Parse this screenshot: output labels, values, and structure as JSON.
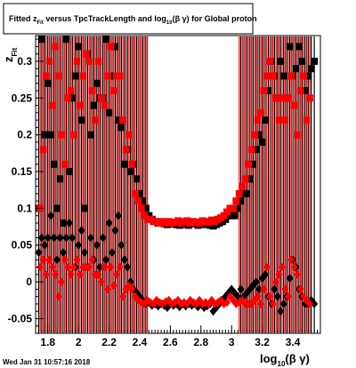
{
  "chart_data": {
    "type": "scatter",
    "title_parts": {
      "a": "Fitted  z",
      "a_sub": "Fit",
      "b": " versus TpcTrackLength and log",
      "b_sub": "10",
      "c": "(β γ) for Global proton"
    },
    "xlabel_main": "log",
    "xlabel_sub": "10",
    "xlabel_tail": "(β γ)",
    "ylabel_main": "z",
    "ylabel_sub": "Fit",
    "timestamp": "Wed Jan 31 10:57:16 2018",
    "xlim": [
      1.72,
      3.58
    ],
    "ylim": [
      -0.07,
      0.335
    ],
    "x_ticks": [
      "1.8",
      "2",
      "2.2",
      "2.4",
      "2.6",
      "2.8",
      "3",
      "3.2",
      "3.4"
    ],
    "x_tick_values": [
      1.8,
      2.0,
      2.2,
      2.4,
      2.6,
      2.8,
      3.0,
      3.2,
      3.4
    ],
    "y_ticks": [
      "-0.05",
      "0",
      "0.05",
      "0.1",
      "0.15",
      "0.2",
      "0.25",
      "0.3"
    ],
    "y_tick_values": [
      -0.05,
      0,
      0.05,
      0.1,
      0.15,
      0.2,
      0.25,
      0.3
    ],
    "series": [
      {
        "marker": "square",
        "color": "#000000",
        "x": [
          1.74,
          1.76,
          1.78,
          1.8,
          1.82,
          1.84,
          1.86,
          1.88,
          1.9,
          1.92,
          1.94,
          1.96,
          1.98,
          2.0,
          2.02,
          2.04,
          2.06,
          2.08,
          2.1,
          2.12,
          2.14,
          2.16,
          2.18,
          2.2,
          2.22,
          2.24,
          2.26,
          2.28,
          2.3,
          2.32,
          2.34,
          2.36,
          2.38,
          2.4,
          2.42,
          2.44,
          2.46,
          2.48,
          2.5,
          2.52,
          2.54,
          2.56,
          2.58,
          2.6,
          2.62,
          2.64,
          2.66,
          2.68,
          2.7,
          2.72,
          2.74,
          2.76,
          2.78,
          2.8,
          2.82,
          2.84,
          2.86,
          2.88,
          2.9,
          2.92,
          2.94,
          2.96,
          2.98,
          3.0,
          3.02,
          3.04,
          3.06,
          3.08,
          3.1,
          3.12,
          3.14,
          3.16,
          3.18,
          3.2,
          3.22,
          3.24,
          3.26,
          3.28,
          3.3,
          3.32,
          3.34,
          3.36,
          3.38,
          3.4,
          3.42,
          3.44,
          3.46,
          3.48,
          3.5,
          3.52,
          3.54
        ],
        "y": [
          0.1,
          0.33,
          0.2,
          0.27,
          0.2,
          0.16,
          0.1,
          0.14,
          0.08,
          0.33,
          0.15,
          0.25,
          0.28,
          0.32,
          0.22,
          0.1,
          0.31,
          0.2,
          0.24,
          0.27,
          0.25,
          0.25,
          0.33,
          0.23,
          0.28,
          0.32,
          0.22,
          0.21,
          0.16,
          0.18,
          0.15,
          0.16,
          0.14,
          0.12,
          0.11,
          0.1,
          0.09,
          0.085,
          0.082,
          0.08,
          0.08,
          0.079,
          0.078,
          0.079,
          0.08,
          0.078,
          0.077,
          0.078,
          0.08,
          0.077,
          0.079,
          0.08,
          0.077,
          0.078,
          0.08,
          0.078,
          0.077,
          0.076,
          0.078,
          0.08,
          0.082,
          0.085,
          0.09,
          0.09,
          0.09,
          0.1,
          0.11,
          0.12,
          0.12,
          0.14,
          0.16,
          0.18,
          0.2,
          0.19,
          0.22,
          0.26,
          0.3,
          0.28,
          0.25,
          0.3,
          0.28,
          0.25,
          0.32,
          0.28,
          0.29,
          0.32,
          0.3,
          0.26,
          0.28,
          0.29,
          0.3
        ]
      },
      {
        "marker": "square",
        "color": "#ff0000",
        "x": [
          1.75,
          1.77,
          1.79,
          1.81,
          1.83,
          1.85,
          1.87,
          1.89,
          1.91,
          1.93,
          1.95,
          1.97,
          1.99,
          2.01,
          2.03,
          2.05,
          2.07,
          2.09,
          2.11,
          2.13,
          2.15,
          2.17,
          2.19,
          2.21,
          2.23,
          2.25,
          2.27,
          2.29,
          2.31,
          2.33,
          2.35,
          2.37,
          2.39,
          2.41,
          2.43,
          2.45,
          2.47,
          2.49,
          2.51,
          2.53,
          2.55,
          2.57,
          2.59,
          2.61,
          2.63,
          2.65,
          2.67,
          2.69,
          2.71,
          2.73,
          2.75,
          2.77,
          2.79,
          2.81,
          2.83,
          2.85,
          2.87,
          2.89,
          2.91,
          2.93,
          2.95,
          2.97,
          2.99,
          3.01,
          3.03,
          3.05,
          3.07,
          3.09,
          3.11,
          3.13,
          3.15,
          3.17,
          3.19,
          3.21,
          3.23,
          3.25,
          3.27,
          3.29,
          3.31,
          3.33,
          3.35,
          3.37,
          3.39,
          3.41,
          3.43,
          3.45,
          3.47,
          3.49,
          3.51
        ],
        "y": [
          0.1,
          0.18,
          0.28,
          0.3,
          0.24,
          0.32,
          0.28,
          0.2,
          0.16,
          0.25,
          0.26,
          0.2,
          0.3,
          0.24,
          0.28,
          0.31,
          0.3,
          0.26,
          0.22,
          0.3,
          0.25,
          0.24,
          0.28,
          0.32,
          0.26,
          0.28,
          0.28,
          0.22,
          0.18,
          0.2,
          0.16,
          0.12,
          0.11,
          0.1,
          0.09,
          0.085,
          0.085,
          0.082,
          0.082,
          0.08,
          0.082,
          0.08,
          0.082,
          0.08,
          0.081,
          0.083,
          0.08,
          0.082,
          0.083,
          0.08,
          0.082,
          0.081,
          0.08,
          0.083,
          0.082,
          0.081,
          0.084,
          0.082,
          0.085,
          0.087,
          0.09,
          0.095,
          0.1,
          0.1,
          0.11,
          0.12,
          0.13,
          0.14,
          0.16,
          0.18,
          0.2,
          0.22,
          0.23,
          0.26,
          0.28,
          0.3,
          0.28,
          0.25,
          0.22,
          0.25,
          0.22,
          0.25,
          0.28,
          0.24,
          0.2,
          0.26,
          0.28,
          0.22,
          0.25
        ]
      },
      {
        "marker": "diamond",
        "color": "#000000",
        "x": [
          1.74,
          1.76,
          1.78,
          1.8,
          1.82,
          1.84,
          1.86,
          1.88,
          1.9,
          1.92,
          1.94,
          1.96,
          1.98,
          2.0,
          2.02,
          2.04,
          2.06,
          2.08,
          2.1,
          2.12,
          2.14,
          2.16,
          2.18,
          2.2,
          2.22,
          2.24,
          2.26,
          2.28,
          2.3,
          2.32,
          2.34,
          2.36,
          2.38,
          2.4,
          2.42,
          2.44,
          2.46,
          2.48,
          2.5,
          2.52,
          2.54,
          2.56,
          2.58,
          2.6,
          2.62,
          2.64,
          2.66,
          2.68,
          2.7,
          2.72,
          2.74,
          2.76,
          2.78,
          2.8,
          2.82,
          2.84,
          2.86,
          2.88,
          2.9,
          2.92,
          2.94,
          2.96,
          2.98,
          3.0,
          3.02,
          3.04,
          3.06,
          3.08,
          3.1,
          3.12,
          3.14,
          3.16,
          3.18,
          3.2,
          3.22,
          3.24,
          3.26,
          3.28,
          3.3,
          3.32,
          3.34,
          3.36,
          3.38,
          3.4,
          3.42,
          3.44,
          3.46,
          3.48,
          3.5,
          3.52,
          3.54
        ],
        "y": [
          0.04,
          0.06,
          0.05,
          0.06,
          0.09,
          0.06,
          0.03,
          0.06,
          0.04,
          0.06,
          0.08,
          0.06,
          0.02,
          0.05,
          0.07,
          0.04,
          0.02,
          0.06,
          0.03,
          0.05,
          0.02,
          0.06,
          0.03,
          0.08,
          0.04,
          0.07,
          0.09,
          0.05,
          0.03,
          0.02,
          0.0,
          -0.01,
          -0.015,
          -0.02,
          -0.025,
          -0.03,
          -0.028,
          -0.032,
          -0.03,
          -0.033,
          -0.03,
          -0.032,
          -0.035,
          -0.03,
          -0.032,
          -0.03,
          -0.034,
          -0.03,
          -0.033,
          -0.03,
          -0.032,
          -0.03,
          -0.034,
          -0.03,
          -0.035,
          -0.033,
          -0.03,
          -0.04,
          -0.035,
          -0.03,
          -0.025,
          -0.02,
          -0.015,
          -0.01,
          -0.015,
          -0.02,
          -0.01,
          -0.02,
          -0.015,
          -0.01,
          -0.005,
          0.0,
          -0.01,
          0.005,
          0.01,
          -0.02,
          -0.03,
          -0.01,
          -0.02,
          -0.04,
          -0.03,
          -0.02,
          0.005,
          0.03,
          0.02,
          -0.01,
          -0.02,
          -0.03,
          -0.03,
          -0.025,
          -0.03
        ]
      },
      {
        "marker": "diamond",
        "color": "#ff0000",
        "x": [
          1.75,
          1.77,
          1.79,
          1.81,
          1.83,
          1.85,
          1.87,
          1.89,
          1.91,
          1.93,
          1.95,
          1.97,
          1.99,
          2.01,
          2.03,
          2.05,
          2.07,
          2.09,
          2.11,
          2.13,
          2.15,
          2.17,
          2.19,
          2.21,
          2.23,
          2.25,
          2.27,
          2.29,
          2.31,
          2.33,
          2.35,
          2.37,
          2.39,
          2.41,
          2.43,
          2.45,
          2.47,
          2.49,
          2.51,
          2.53,
          2.55,
          2.57,
          2.59,
          2.61,
          2.63,
          2.65,
          2.67,
          2.69,
          2.71,
          2.73,
          2.75,
          2.77,
          2.79,
          2.81,
          2.83,
          2.85,
          2.87,
          2.89,
          2.91,
          2.93,
          2.95,
          2.97,
          2.99,
          3.01,
          3.03,
          3.05,
          3.07,
          3.09,
          3.11,
          3.13,
          3.15,
          3.17,
          3.19,
          3.21,
          3.23,
          3.25,
          3.27,
          3.29,
          3.31,
          3.33,
          3.35,
          3.37,
          3.39,
          3.41,
          3.43,
          3.45,
          3.47,
          3.49,
          3.51
        ],
        "y": [
          0.02,
          0.03,
          0.01,
          0.03,
          0.02,
          0.01,
          -0.02,
          0.0,
          0.03,
          0.02,
          0.01,
          0.02,
          0.03,
          0.01,
          0.02,
          0.02,
          0.02,
          0.03,
          0.01,
          0.01,
          0.0,
          0.02,
          -0.01,
          0.02,
          -0.005,
          0.01,
          0.02,
          -0.02,
          -0.01,
          -0.005,
          -0.01,
          -0.02,
          -0.025,
          -0.028,
          -0.03,
          -0.025,
          -0.028,
          -0.03,
          -0.025,
          -0.028,
          -0.03,
          -0.027,
          -0.025,
          -0.03,
          -0.028,
          -0.025,
          -0.03,
          -0.028,
          -0.03,
          -0.025,
          -0.028,
          -0.03,
          -0.025,
          -0.03,
          -0.028,
          -0.03,
          -0.025,
          -0.03,
          -0.028,
          -0.025,
          -0.03,
          -0.028,
          -0.02,
          -0.025,
          -0.03,
          -0.028,
          -0.025,
          -0.03,
          -0.03,
          -0.03,
          -0.025,
          -0.02,
          -0.03,
          -0.01,
          0.02,
          -0.02,
          -0.03,
          0.0,
          0.01,
          0.02,
          -0.01,
          -0.02,
          0.03,
          0.02,
          0.01,
          -0.01,
          -0.02,
          -0.025,
          -0.03
        ]
      }
    ]
  }
}
